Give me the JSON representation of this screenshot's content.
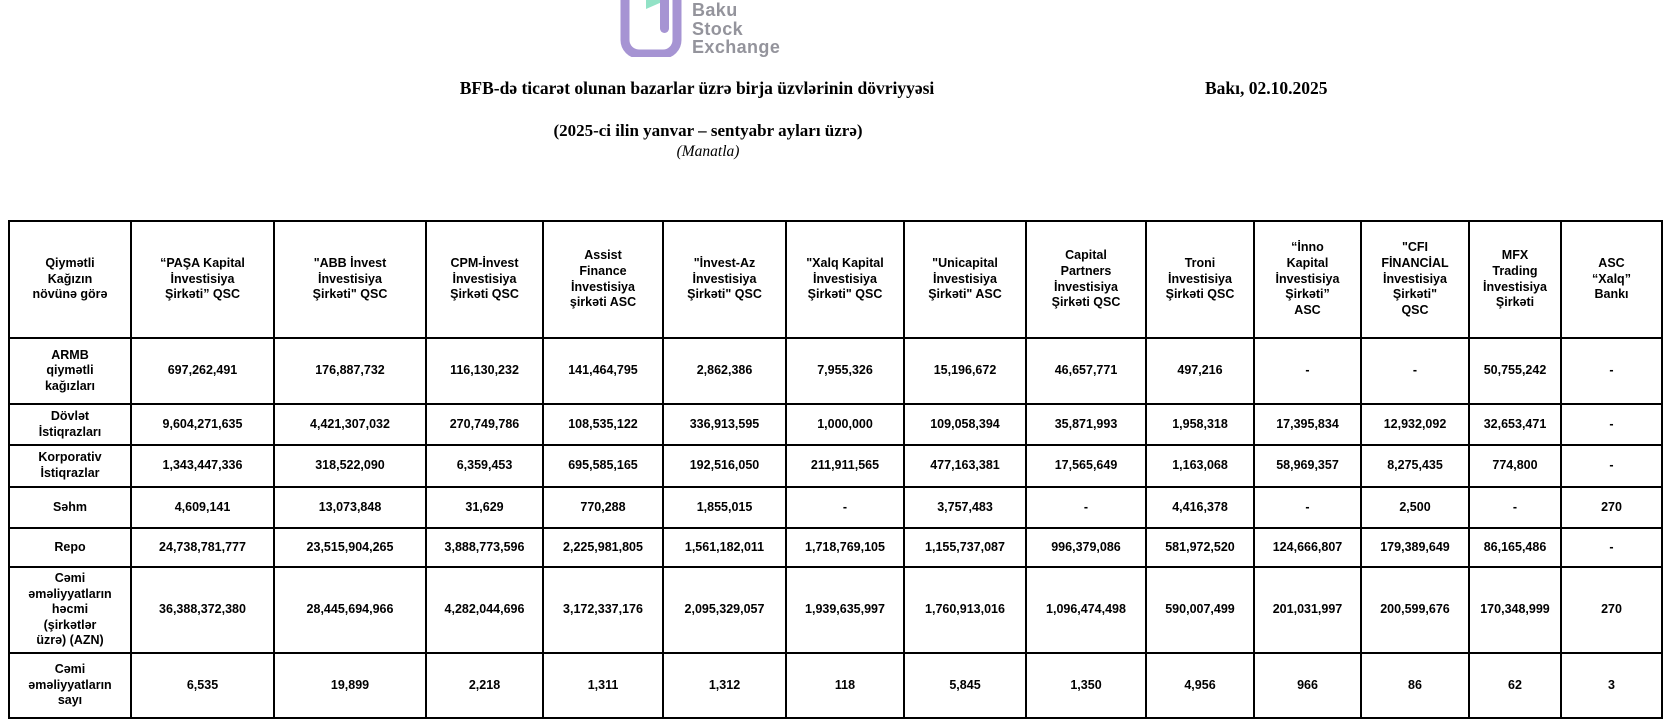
{
  "logo": {
    "lines": [
      "Baku",
      "Stock",
      "Exchange"
    ],
    "purple_color": "#a694d3",
    "green_color": "#92e2c6",
    "text_color": "#94949c"
  },
  "header": {
    "title": "BFB-də ticarət olunan bazarlar üzrə birja üzvlərinin dövriyyəsi",
    "date": "Bakı, 02.10.2025",
    "subtitle": "(2025-ci ilin yanvar – sentyabr ayları üzrə)",
    "unit_note": "(Manatla)"
  },
  "table": {
    "corner_header": "Qiymətli\nKağızın\nnövünə görə",
    "columns": [
      "“PAŞA Kapital\nİnvestisiya\nŞirkəti” QSC",
      "\"ABB İnvest\nİnvestisiya\nŞirkəti\" QSC",
      "CPM-İnvest\nİnvestisiya\nŞirkəti QSC",
      "Assist\nFinance\nİnvestisiya\nşirkəti ASC",
      "\"İnvest-Az\nİnvestisiya\nŞirkəti\" QSC",
      "\"Xalq Kapital\nİnvestisiya\nŞirkəti\" QSC",
      "\"Unicapital\nİnvestisiya\nŞirkəti\" ASC",
      "Capital\nPartners\nİnvestisiya\nŞirkəti QSC",
      "Troni\nİnvestisiya\nŞirkəti QSC",
      "“İnno\nKapital\nİnvestisiya\nŞirkəti”\nASC",
      "\"CFI\nFİNANCİAL\nİnvestisiya\nŞirkəti\"\nQSC",
      "MFX\nTrading\nİnvestisiya\nŞirkəti",
      "ASC\n“Xalq”\nBankı"
    ],
    "rows": [
      {
        "label": "ARMB\nqiymətli\nkağızları",
        "values": [
          "697,262,491",
          "176,887,732",
          "116,130,232",
          "141,464,795",
          "2,862,386",
          "7,955,326",
          "15,196,672",
          "46,657,771",
          "497,216",
          "-",
          "-",
          "50,755,242",
          "-"
        ]
      },
      {
        "label": "Dövlət\nİstiqrazları",
        "values": [
          "9,604,271,635",
          "4,421,307,032",
          "270,749,786",
          "108,535,122",
          "336,913,595",
          "1,000,000",
          "109,058,394",
          "35,871,993",
          "1,958,318",
          "17,395,834",
          "12,932,092",
          "32,653,471",
          "-"
        ]
      },
      {
        "label": "Korporativ\nİstiqrazlar",
        "values": [
          "1,343,447,336",
          "318,522,090",
          "6,359,453",
          "695,585,165",
          "192,516,050",
          "211,911,565",
          "477,163,381",
          "17,565,649",
          "1,163,068",
          "58,969,357",
          "8,275,435",
          "774,800",
          "-"
        ]
      },
      {
        "label": "Səhm",
        "values": [
          "4,609,141",
          "13,073,848",
          "31,629",
          "770,288",
          "1,855,015",
          "-",
          "3,757,483",
          "-",
          "4,416,378",
          "-",
          "2,500",
          "-",
          "270"
        ]
      },
      {
        "label": "Repo",
        "values": [
          "24,738,781,777",
          "23,515,904,265",
          "3,888,773,596",
          "2,225,981,805",
          "1,561,182,011",
          "1,718,769,105",
          "1,155,737,087",
          "996,379,086",
          "581,972,520",
          "124,666,807",
          "179,389,649",
          "86,165,486",
          "-"
        ]
      },
      {
        "label": "Cəmi\nəməliyyatların\nhəcmi\n(şirkətlər\nüzrə) (AZN)",
        "values": [
          "36,388,372,380",
          "28,445,694,966",
          "4,282,044,696",
          "3,172,337,176",
          "2,095,329,057",
          "1,939,635,997",
          "1,760,913,016",
          "1,096,474,498",
          "590,007,499",
          "201,031,997",
          "200,599,676",
          "170,348,999",
          "270"
        ]
      },
      {
        "label": "Cəmi\nəməliyyatların\nsayı",
        "values": [
          "6,535",
          "19,899",
          "2,218",
          "1,311",
          "1,312",
          "118",
          "5,845",
          "1,350",
          "4,956",
          "966",
          "86",
          "62",
          "3"
        ]
      }
    ]
  }
}
